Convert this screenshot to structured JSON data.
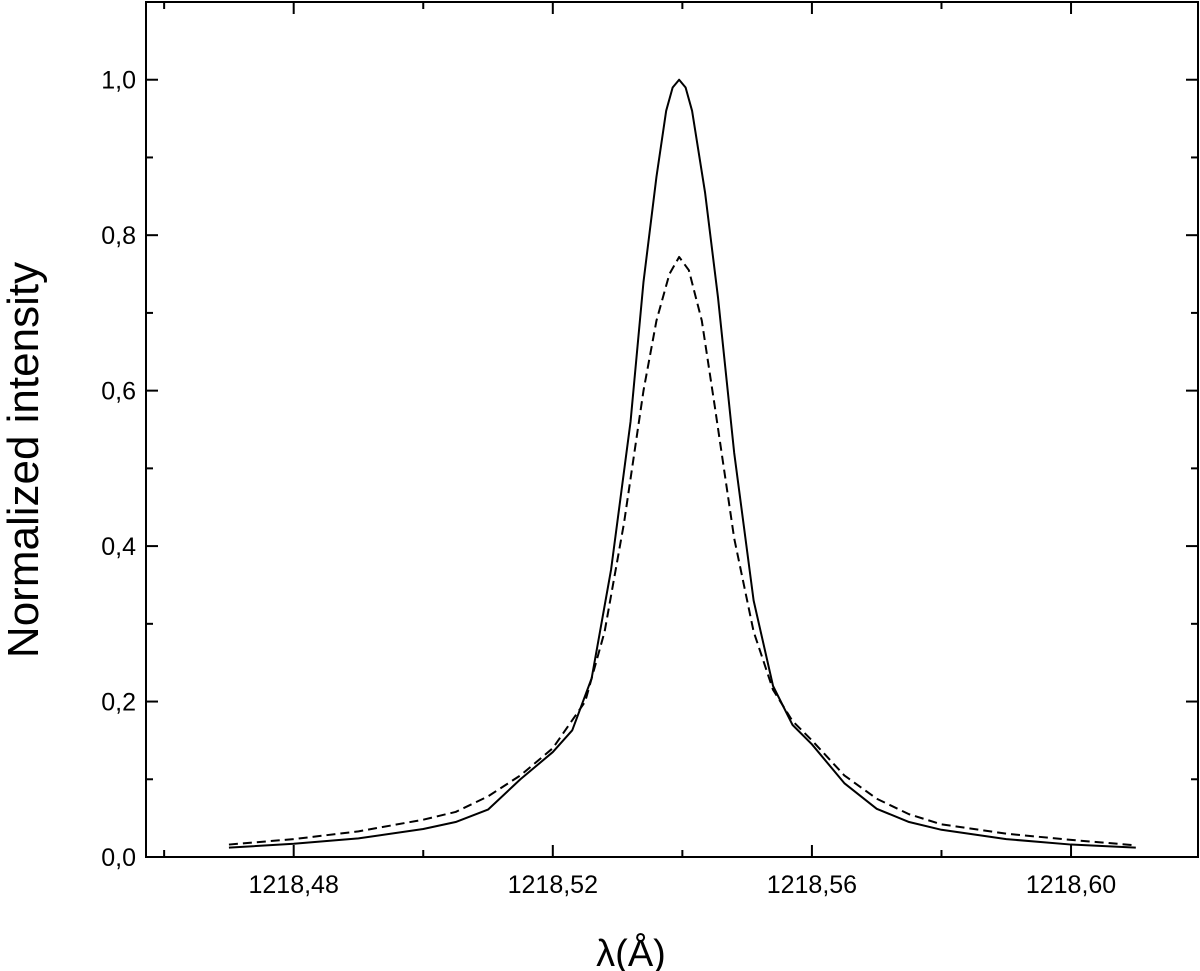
{
  "chart_data": {
    "type": "line",
    "title": "",
    "xlabel": "λ(Å)",
    "ylabel": "Normalized intensity",
    "xlim": [
      1218.4572,
      1218.6196
    ],
    "ylim": [
      0.0,
      1.1
    ],
    "grid": false,
    "legend": "none",
    "x_ticks": [
      {
        "value": 1218.48,
        "label": "1218,48"
      },
      {
        "value": 1218.52,
        "label": "1218,52"
      },
      {
        "value": 1218.56,
        "label": "1218,56"
      },
      {
        "value": 1218.6,
        "label": "1218,60"
      }
    ],
    "y_ticks": [
      {
        "value": 0.0,
        "label": "0,0"
      },
      {
        "value": 0.2,
        "label": "0,2"
      },
      {
        "value": 0.4,
        "label": "0,4"
      },
      {
        "value": 0.6,
        "label": "0,6"
      },
      {
        "value": 0.8,
        "label": "0,8"
      },
      {
        "value": 1.0,
        "label": "1,0"
      }
    ],
    "series": [
      {
        "style": "solid",
        "color": "#000000",
        "x": [
          1218.47,
          1218.48,
          1218.49,
          1218.5,
          1218.505,
          1218.51,
          1218.515,
          1218.52,
          1218.523,
          1218.526,
          1218.529,
          1218.532,
          1218.534,
          1218.536,
          1218.5375,
          1218.5385,
          1218.5395,
          1218.5405,
          1218.5415,
          1218.5435,
          1218.5455,
          1218.548,
          1218.551,
          1218.554,
          1218.557,
          1218.56,
          1218.565,
          1218.57,
          1218.575,
          1218.58,
          1218.59,
          1218.6,
          1218.61
        ],
        "y": [
          0.012,
          0.017,
          0.024,
          0.036,
          0.045,
          0.061,
          0.1,
          0.135,
          0.163,
          0.23,
          0.37,
          0.56,
          0.74,
          0.875,
          0.96,
          0.99,
          1.0,
          0.99,
          0.96,
          0.855,
          0.72,
          0.52,
          0.33,
          0.22,
          0.17,
          0.145,
          0.095,
          0.062,
          0.045,
          0.035,
          0.023,
          0.016,
          0.012
        ]
      },
      {
        "style": "dashed",
        "color": "#000000",
        "x": [
          1218.47,
          1218.48,
          1218.49,
          1218.5,
          1218.505,
          1218.51,
          1218.515,
          1218.52,
          1218.525,
          1218.528,
          1218.531,
          1218.534,
          1218.536,
          1218.538,
          1218.5395,
          1218.541,
          1218.543,
          1218.545,
          1218.548,
          1218.551,
          1218.554,
          1218.557,
          1218.56,
          1218.565,
          1218.57,
          1218.575,
          1218.58,
          1218.59,
          1218.6,
          1218.61
        ],
        "y": [
          0.016,
          0.023,
          0.033,
          0.048,
          0.058,
          0.078,
          0.105,
          0.14,
          0.2,
          0.29,
          0.43,
          0.6,
          0.69,
          0.75,
          0.772,
          0.755,
          0.69,
          0.58,
          0.41,
          0.29,
          0.215,
          0.175,
          0.15,
          0.105,
          0.075,
          0.055,
          0.042,
          0.03,
          0.022,
          0.015
        ]
      }
    ]
  }
}
